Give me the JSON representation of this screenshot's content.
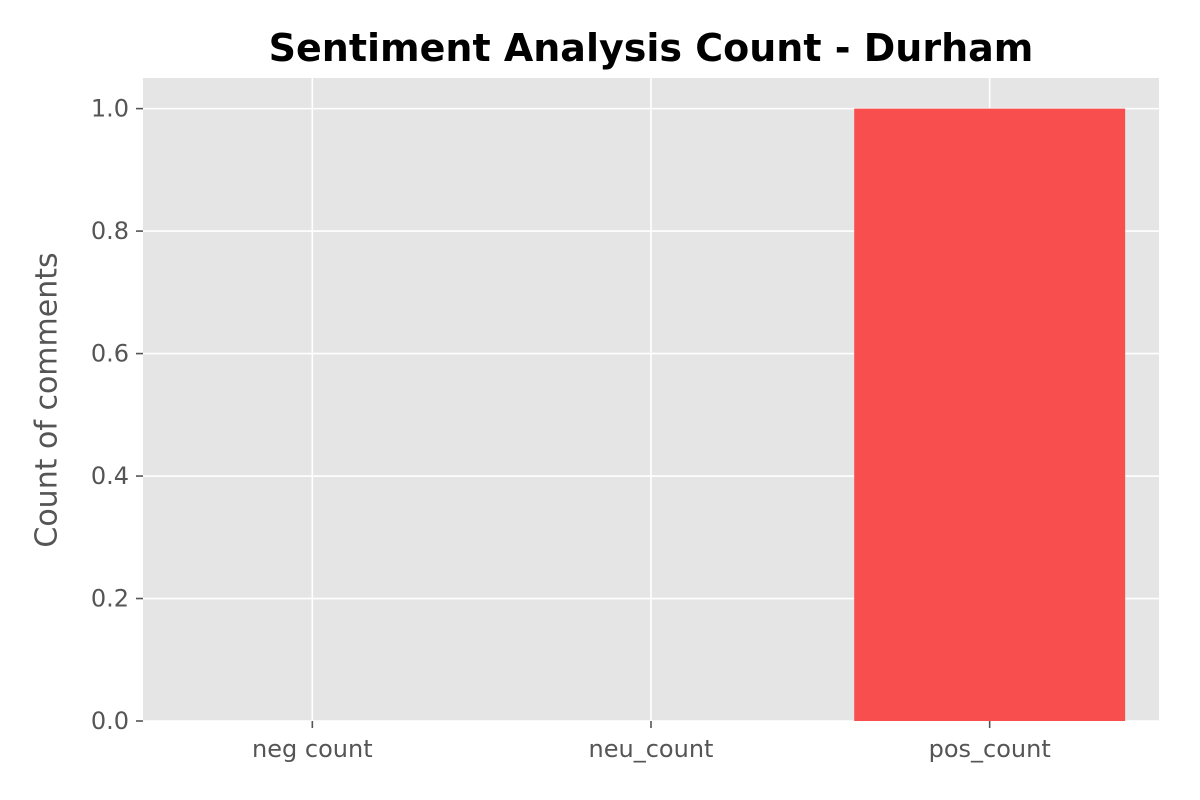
{
  "chart_data": {
    "type": "bar",
    "title": "Sentiment Analysis Count - Durham",
    "xlabel": "",
    "ylabel": "Count of comments",
    "categories": [
      "neg count",
      "neu_count",
      "pos_count"
    ],
    "values": [
      0,
      0,
      1.0
    ],
    "ylim": [
      0,
      1.05
    ],
    "yticks": [
      "0.0",
      "0.2",
      "0.4",
      "0.6",
      "0.8",
      "1.0"
    ],
    "ytick_values": [
      0,
      0.2,
      0.4,
      0.6,
      0.8,
      1.0
    ],
    "grid": true,
    "colors": {
      "bar": "#f94848",
      "plot_background": "#e5e5e5",
      "grid": "#ffffff",
      "tick_text": "#555555"
    }
  }
}
